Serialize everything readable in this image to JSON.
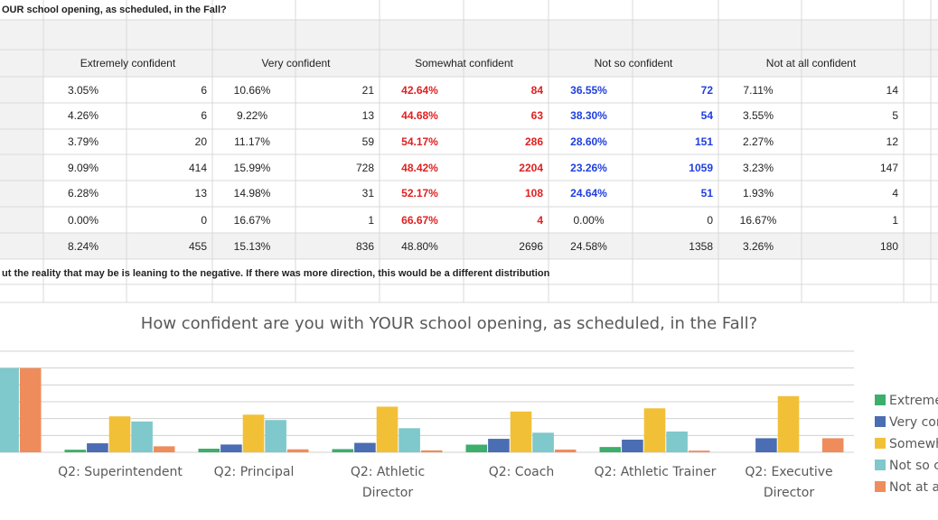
{
  "sheet": {
    "title_cell": "OUR school opening, as scheduled, in the Fall?",
    "columns": [
      "Extremely confident",
      "Very confident",
      "Somewhat confident",
      "Not so confident",
      "Not at all confident"
    ],
    "rows": [
      [
        "3.05%",
        6,
        "10.66%",
        21,
        "42.64%",
        84,
        "36.55%",
        72,
        "7.11%",
        14
      ],
      [
        "4.26%",
        6,
        "9.22%",
        13,
        "44.68%",
        63,
        "38.30%",
        54,
        "3.55%",
        5
      ],
      [
        "3.79%",
        20,
        "11.17%",
        59,
        "54.17%",
        286,
        "28.60%",
        151,
        "2.27%",
        12
      ],
      [
        "9.09%",
        414,
        "15.99%",
        728,
        "48.42%",
        2204,
        "23.26%",
        1059,
        "3.23%",
        147
      ],
      [
        "6.28%",
        13,
        "14.98%",
        31,
        "52.17%",
        108,
        "24.64%",
        51,
        "1.93%",
        4
      ],
      [
        "0.00%",
        0,
        "16.67%",
        1,
        "66.67%",
        4,
        "0.00%",
        0,
        "16.67%",
        1
      ]
    ],
    "total_row": [
      "8.24%",
      455,
      "15.13%",
      836,
      "48.80%",
      2696,
      "24.58%",
      1358,
      "3.26%",
      180
    ],
    "note": "ut the reality that may be is leaning to the negative.  If there was more direction, this would be a different distribution"
  },
  "chart_data": {
    "type": "bar",
    "title": "How confident are you with YOUR school opening, as scheduled, in the Fall?",
    "categories": [
      null,
      "Q2: Superintendent",
      "Q2: Principal",
      "Q2: Athletic Director",
      "Q2: Coach",
      "Q2: Athletic Trainer",
      "Q2: Executive Director"
    ],
    "series": [
      {
        "name": "Extremely confident",
        "color": "#3dae6b",
        "values": [
          null,
          3.05,
          4.26,
          3.79,
          9.09,
          6.28,
          0
        ]
      },
      {
        "name": "Very confident",
        "color": "#4a6db3",
        "values": [
          null,
          10.66,
          9.22,
          11.17,
          15.99,
          14.98,
          16.67
        ]
      },
      {
        "name": "Somewhat confident",
        "color": "#f2c037",
        "values": [
          null,
          42.64,
          44.68,
          54.17,
          48.42,
          52.17,
          66.67
        ]
      },
      {
        "name": "Not so confident",
        "color": "#7fc8cc",
        "values": [
          100,
          36.55,
          38.3,
          28.6,
          23.26,
          24.64,
          0
        ]
      },
      {
        "name": "Not at all confident",
        "color": "#ef8c5c",
        "values": [
          100,
          7.11,
          3.55,
          2.27,
          3.23,
          1.93,
          16.67
        ]
      }
    ],
    "ylim": [
      0,
      120
    ],
    "yticks": [
      0,
      20,
      40,
      60,
      80,
      100,
      120
    ],
    "grid": true
  }
}
